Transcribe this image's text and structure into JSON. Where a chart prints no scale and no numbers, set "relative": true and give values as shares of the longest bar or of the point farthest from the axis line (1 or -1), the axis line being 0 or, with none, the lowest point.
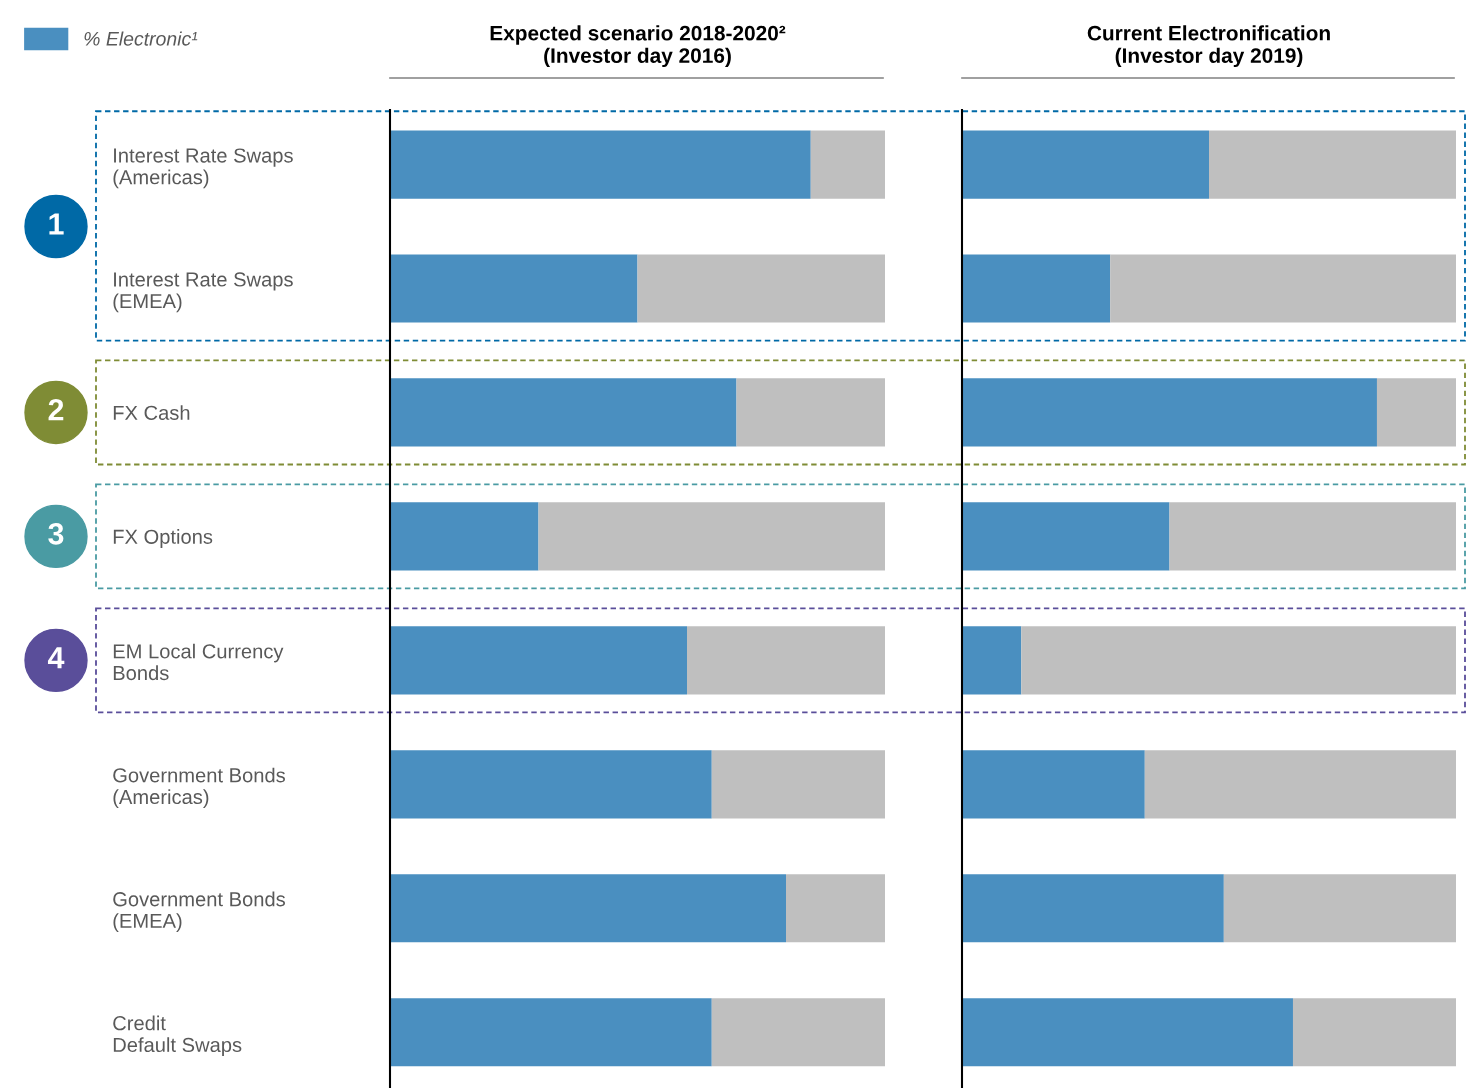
{
  "chart_data": [
    {
      "type": "bar",
      "orientation": "horizontal",
      "stacked": true,
      "relative": true,
      "title": "Expected scenario 2018-2020²\n(Investor day 2016)",
      "categories": [
        "Interest Rate Swaps\n(Americas)",
        "Interest Rate Swaps\n(EMEA)",
        "FX Cash",
        "FX Options",
        "EM Local Currency\nBonds",
        "Government Bonds\n(Americas)",
        "Government Bonds\n(EMEA)",
        "Credit\nDefault Swaps"
      ],
      "series": [
        {
          "name": "% Electronic¹",
          "color": "#4a8fc0",
          "values": [
            0.85,
            0.5,
            0.7,
            0.3,
            0.6,
            0.65,
            0.8,
            0.65
          ]
        },
        {
          "color": "#bfbfbf",
          "values": [
            0.15,
            0.5,
            0.3,
            0.7,
            0.4,
            0.35,
            0.2,
            0.35
          ]
        }
      ],
      "annotations": [
        "1",
        "2",
        "3",
        "4"
      ],
      "legend": "top left",
      "tick_labels": "y"
    },
    {
      "type": "bar",
      "orientation": "horizontal",
      "stacked": true,
      "relative": true,
      "title": "Current Electronification\n(Investor day 2019)",
      "series": [
        {
          "color": "#4a8fc0",
          "values": [
            0.5,
            0.3,
            0.84,
            0.42,
            0.12,
            0.37,
            0.53,
            0.67
          ]
        },
        {
          "color": "#bfbfbf",
          "values": [
            0.5,
            0.7,
            0.16,
            0.58,
            0.88,
            0.63,
            0.47,
            0.33
          ]
        }
      ],
      "legend": false
    }
  ]
}
